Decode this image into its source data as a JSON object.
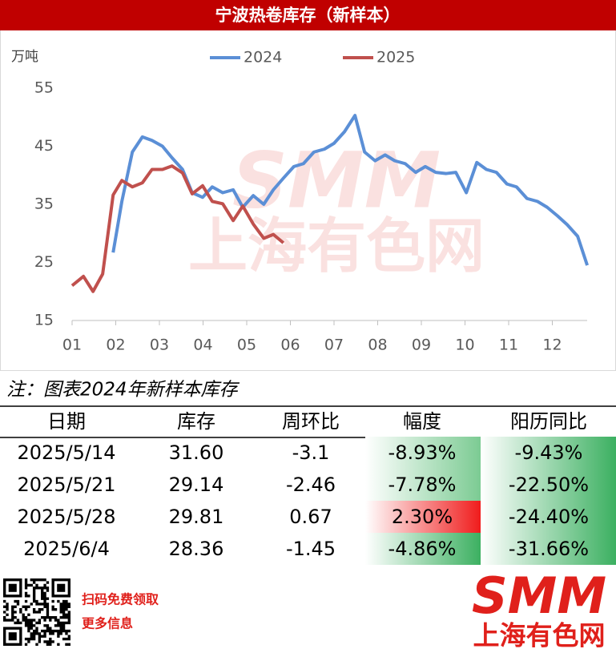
{
  "chart_data": {
    "type": "line",
    "title": "宁波热卷库存（新样本）",
    "y_unit": "万吨",
    "ylim": [
      15,
      55
    ],
    "yticks": [
      15,
      25,
      35,
      45,
      55
    ],
    "xlim": [
      1,
      12.8
    ],
    "xticks": [
      {
        "value": 1,
        "label": "01"
      },
      {
        "value": 2,
        "label": "02"
      },
      {
        "value": 3,
        "label": "03"
      },
      {
        "value": 4,
        "label": "04"
      },
      {
        "value": 5,
        "label": "05"
      },
      {
        "value": 6,
        "label": "06"
      },
      {
        "value": 7,
        "label": "07"
      },
      {
        "value": 8,
        "label": "08"
      },
      {
        "value": 9,
        "label": "09"
      },
      {
        "value": 10,
        "label": "10"
      },
      {
        "value": 11,
        "label": "11"
      },
      {
        "value": 12,
        "label": "12"
      }
    ],
    "legend": "top",
    "series": [
      {
        "name": "2024",
        "color": "#5b8fd6",
        "x": [
          1.94,
          2.14,
          2.38,
          2.61,
          2.83,
          3.07,
          3.29,
          3.53,
          3.75,
          3.99,
          4.21,
          4.45,
          4.69,
          4.91,
          5.15,
          5.39,
          5.61,
          5.84,
          6.08,
          6.3,
          6.54,
          6.78,
          7.0,
          7.24,
          7.48,
          7.7,
          7.94,
          8.17,
          8.39,
          8.63,
          8.87,
          9.09,
          9.33,
          9.57,
          9.79,
          10.03,
          10.27,
          10.49,
          10.72,
          10.96,
          11.18,
          11.42,
          11.66,
          11.88,
          12.12,
          12.34,
          12.58,
          12.8
        ],
        "values": [
          26.7,
          35.5,
          44,
          46.6,
          46,
          45,
          43,
          41,
          37,
          36.2,
          38,
          37,
          37.5,
          34.5,
          36.5,
          35,
          37.5,
          39.5,
          41.5,
          42,
          44,
          44.5,
          45.5,
          47.5,
          50.3,
          44,
          42.5,
          43.5,
          42.5,
          42,
          40.5,
          41.5,
          40.5,
          40.3,
          40.5,
          37,
          42.2,
          41,
          40.5,
          38.5,
          38,
          36,
          35.5,
          34.5,
          33,
          31.5,
          29.5,
          24.5
        ]
      },
      {
        "name": "2025",
        "color": "#c0504d",
        "x": [
          1.0,
          1.26,
          1.48,
          1.7,
          1.94,
          2.14,
          2.38,
          2.61,
          2.83,
          3.07,
          3.29,
          3.53,
          3.75,
          3.99,
          4.21,
          4.45,
          4.69,
          4.91,
          5.15,
          5.39,
          5.61,
          5.84
        ],
        "values": [
          21,
          22.6,
          20,
          23,
          36.6,
          39.1,
          38,
          38.7,
          41,
          41,
          41.6,
          40.4,
          36.8,
          38.2,
          35.5,
          35.1,
          32.2,
          34.7,
          31.6,
          29.14,
          29.81,
          28.36
        ]
      }
    ],
    "watermark": [
      "SMM",
      "上海有色网"
    ]
  },
  "note": "注：图表2024年新样本库存",
  "table": {
    "header": [
      "日期",
      "库存",
      "周环比",
      "幅度",
      "阳历同比"
    ],
    "rows": [
      [
        "2025/5/14",
        "31.60",
        "-3.1",
        "-8.93%",
        "-9.43%"
      ],
      [
        "2025/5/21",
        "29.14",
        "-2.46",
        "-7.78%",
        "-22.50%"
      ],
      [
        "2025/5/28",
        "29.81",
        "0.67",
        "2.30%",
        "-24.40%"
      ],
      [
        "2025/6/4",
        "28.36",
        "-1.45",
        "-4.86%",
        "-31.66%"
      ]
    ]
  },
  "footer": {
    "qr_text": [
      "扫码免费领取",
      "更多信息"
    ],
    "logo": [
      "SMM",
      "上海有色网"
    ]
  }
}
